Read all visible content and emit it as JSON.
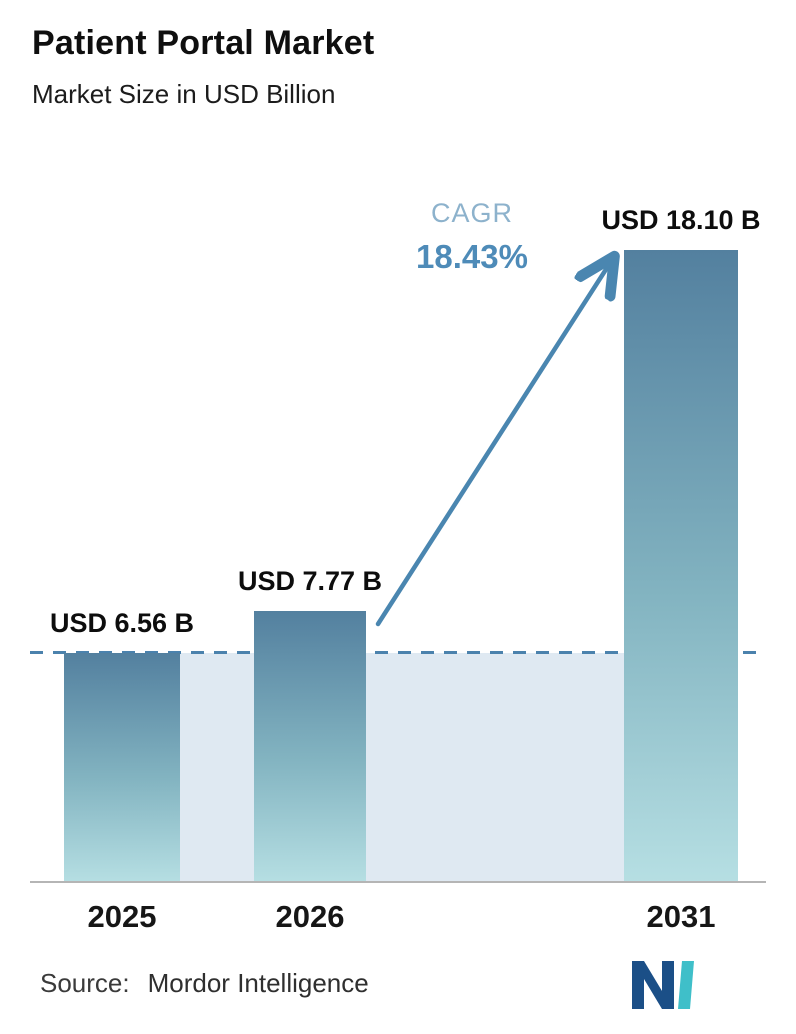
{
  "header": {
    "title": "Patient Portal Market",
    "subtitle": "Market Size in USD Billion"
  },
  "chart_data": {
    "type": "bar",
    "title": "Patient Portal Market",
    "ylabel": "Market Size in USD Billion",
    "xlabel": "",
    "categories": [
      "2025",
      "2026",
      "2031"
    ],
    "values": [
      6.56,
      7.77,
      18.1
    ],
    "bar_labels": [
      "USD 6.56 B",
      "USD 7.77 B",
      "USD 18.10 B"
    ],
    "ylim": [
      0,
      19
    ],
    "grid": false,
    "legend": "none",
    "reference_line": {
      "value": 6.56,
      "style": "dashed",
      "color": "#4b82ad"
    },
    "annotation": {
      "label": "CAGR",
      "value": "18.43%"
    },
    "colors": {
      "bar_gradient_top": "#53809f",
      "bar_gradient_bottom": "#b6dfe3",
      "band": "#dfe9f2",
      "dashed_line": "#4b82ad",
      "cagr_label": "#8db2cc",
      "cagr_value": "#4e8bb8",
      "arrow": "#4a86b0",
      "axis_line": "#b5b5b5"
    }
  },
  "footer": {
    "source_label": "Source:",
    "source_value": "Mordor Intelligence",
    "logo": "mordor-intelligence-logo"
  }
}
